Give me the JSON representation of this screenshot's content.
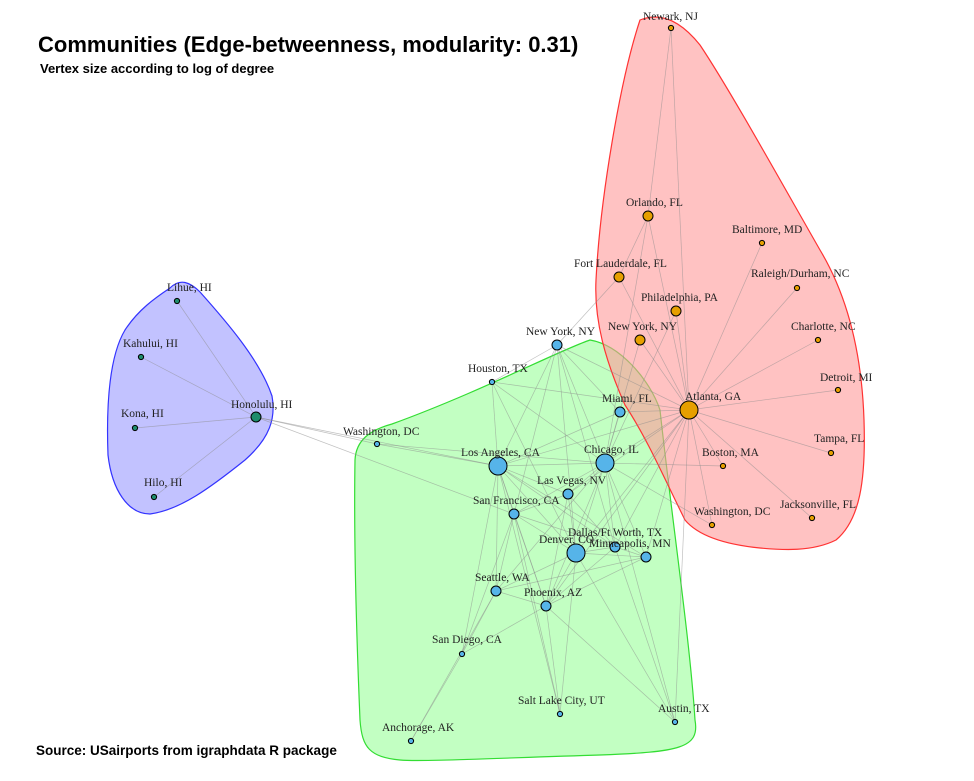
{
  "title": "Communities (Edge-betweenness, modularity: 0.31)",
  "subtitle": "Vertex size according to log of degree",
  "source": "Source: USairports from igraphdata R package",
  "colors": {
    "hawaii_fill": "#9999ff",
    "hawaii_stroke": "#3333ff",
    "hawaii_vertex": "#1e8c6b",
    "east_fill": "#ff9999",
    "east_stroke": "#ff3333",
    "east_vertex": "#e69f00",
    "main_fill": "#99ff99",
    "main_stroke": "#33dd33",
    "main_vertex": "#56b4e9",
    "isolated_vertex": "#56b4e9"
  },
  "communities": [
    {
      "id": "hawaii",
      "members": [
        "Lihue, HI",
        "Kahului, HI",
        "Kona, HI",
        "Hilo, HI",
        "Honolulu, HI"
      ]
    },
    {
      "id": "east",
      "members": [
        "Newark, NJ",
        "Orlando, FL",
        "Baltimore, MD",
        "Fort Lauderdale, FL",
        "Raleigh/Durham, NC",
        "Philadelphia, PA",
        "New York, NY (east)",
        "Charlotte, NC",
        "Atlanta, GA",
        "Detroit, MI",
        "Tampa, FL",
        "Boston, MA",
        "Washington, DC (east)",
        "Jacksonville, FL"
      ]
    },
    {
      "id": "main",
      "members": [
        "New York, NY",
        "Houston, TX",
        "Miami, FL",
        "Los Angeles, CA",
        "Chicago, IL",
        "Las Vegas, NV",
        "San Francisco, CA",
        "Dallas/Ft Worth, TX",
        "Denver, CO",
        "Minneapolis, MN",
        "Seattle, WA",
        "Phoenix, AZ",
        "San Diego, CA",
        "Salt Lake City, UT",
        "Austin, TX",
        "Anchorage, AK"
      ]
    }
  ],
  "vertices": [
    {
      "id": "lihue",
      "label": "Lihue, HI",
      "community": "hawaii",
      "degree": "low"
    },
    {
      "id": "kahului",
      "label": "Kahului, HI",
      "community": "hawaii",
      "degree": "low"
    },
    {
      "id": "kona",
      "label": "Kona, HI",
      "community": "hawaii",
      "degree": "low"
    },
    {
      "id": "hilo",
      "label": "Hilo, HI",
      "community": "hawaii",
      "degree": "low"
    },
    {
      "id": "honolulu",
      "label": "Honolulu, HI",
      "community": "hawaii",
      "degree": "mid"
    },
    {
      "id": "newark",
      "label": "Newark, NJ",
      "community": "east",
      "degree": "low"
    },
    {
      "id": "orlando",
      "label": "Orlando, FL",
      "community": "east",
      "degree": "mid"
    },
    {
      "id": "baltimore",
      "label": "Baltimore, MD",
      "community": "east",
      "degree": "low"
    },
    {
      "id": "fortlaud",
      "label": "Fort Lauderdale, FL",
      "community": "east",
      "degree": "mid"
    },
    {
      "id": "raleigh",
      "label": "Raleigh/Durham, NC",
      "community": "east",
      "degree": "low"
    },
    {
      "id": "philly",
      "label": "Philadelphia, PA",
      "community": "east",
      "degree": "mid"
    },
    {
      "id": "nyeast",
      "label": "New York, NY",
      "community": "east",
      "degree": "mid"
    },
    {
      "id": "charlotte",
      "label": "Charlotte, NC",
      "community": "east",
      "degree": "low"
    },
    {
      "id": "atlanta",
      "label": "Atlanta, GA",
      "community": "east",
      "degree": "high"
    },
    {
      "id": "detroit",
      "label": "Detroit, MI",
      "community": "east",
      "degree": "low"
    },
    {
      "id": "tampa",
      "label": "Tampa, FL",
      "community": "east",
      "degree": "low"
    },
    {
      "id": "boston",
      "label": "Boston, MA",
      "community": "east",
      "degree": "low"
    },
    {
      "id": "dceast",
      "label": "Washington, DC",
      "community": "east",
      "degree": "low"
    },
    {
      "id": "jax",
      "label": "Jacksonville, FL",
      "community": "east",
      "degree": "low"
    },
    {
      "id": "dcwest",
      "label": "Washington, DC",
      "community": "none",
      "degree": "low"
    },
    {
      "id": "nymain",
      "label": "New York, NY",
      "community": "main",
      "degree": "mid"
    },
    {
      "id": "houston",
      "label": "Houston, TX",
      "community": "main",
      "degree": "low"
    },
    {
      "id": "miami",
      "label": "Miami, FL",
      "community": "main",
      "degree": "mid"
    },
    {
      "id": "la",
      "label": "Los Angeles, CA",
      "community": "main",
      "degree": "high"
    },
    {
      "id": "chicago",
      "label": "Chicago, IL",
      "community": "main",
      "degree": "high"
    },
    {
      "id": "lasvegas",
      "label": "Las Vegas, NV",
      "community": "main",
      "degree": "mid"
    },
    {
      "id": "sf",
      "label": "San Francisco, CA",
      "community": "main",
      "degree": "mid"
    },
    {
      "id": "dallas",
      "label": "Dallas/Ft Worth, TX",
      "community": "main",
      "degree": "mid"
    },
    {
      "id": "denver",
      "label": "Denver, CO",
      "community": "main",
      "degree": "high"
    },
    {
      "id": "minneapolis",
      "label": "Minneapolis, MN",
      "community": "main",
      "degree": "mid"
    },
    {
      "id": "seattle",
      "label": "Seattle, WA",
      "community": "main",
      "degree": "mid"
    },
    {
      "id": "phoenix",
      "label": "Phoenix, AZ",
      "community": "main",
      "degree": "mid"
    },
    {
      "id": "sandiego",
      "label": "San Diego, CA",
      "community": "main",
      "degree": "low"
    },
    {
      "id": "slc",
      "label": "Salt Lake City, UT",
      "community": "main",
      "degree": "low"
    },
    {
      "id": "austin",
      "label": "Austin, TX",
      "community": "main",
      "degree": "low"
    },
    {
      "id": "anchorage",
      "label": "Anchorage, AK",
      "community": "main",
      "degree": "low"
    }
  ],
  "edges": [
    [
      "lihue",
      "honolulu"
    ],
    [
      "kahului",
      "honolulu"
    ],
    [
      "kona",
      "honolulu"
    ],
    [
      "hilo",
      "honolulu"
    ],
    [
      "honolulu",
      "dcwest"
    ],
    [
      "honolulu",
      "la"
    ],
    [
      "honolulu",
      "sf"
    ],
    [
      "dcwest",
      "la"
    ],
    [
      "dcwest",
      "chicago"
    ],
    [
      "newark",
      "atlanta"
    ],
    [
      "newark",
      "orlando"
    ],
    [
      "orlando",
      "atlanta"
    ],
    [
      "orlando",
      "fortlaud"
    ],
    [
      "baltimore",
      "atlanta"
    ],
    [
      "raleigh",
      "atlanta"
    ],
    [
      "charlotte",
      "atlanta"
    ],
    [
      "detroit",
      "atlanta"
    ],
    [
      "tampa",
      "atlanta"
    ],
    [
      "boston",
      "atlanta"
    ],
    [
      "dceast",
      "atlanta"
    ],
    [
      "jax",
      "atlanta"
    ],
    [
      "philly",
      "atlanta"
    ],
    [
      "nyeast",
      "atlanta"
    ],
    [
      "fortlaud",
      "atlanta"
    ],
    [
      "fortlaud",
      "nymain"
    ],
    [
      "nyeast",
      "chicago"
    ],
    [
      "philly",
      "chicago"
    ],
    [
      "orlando",
      "chicago"
    ],
    [
      "atlanta",
      "chicago"
    ],
    [
      "atlanta",
      "miami"
    ],
    [
      "atlanta",
      "dallas"
    ],
    [
      "atlanta",
      "denver"
    ],
    [
      "atlanta",
      "la"
    ],
    [
      "atlanta",
      "minneapolis"
    ],
    [
      "atlanta",
      "lasvegas"
    ],
    [
      "atlanta",
      "phoenix"
    ],
    [
      "atlanta",
      "houston"
    ],
    [
      "atlanta",
      "austin"
    ],
    [
      "atlanta",
      "nymain"
    ],
    [
      "dceast",
      "chicago"
    ],
    [
      "boston",
      "chicago"
    ],
    [
      "nymain",
      "houston"
    ],
    [
      "nymain",
      "la"
    ],
    [
      "nymain",
      "chicago"
    ],
    [
      "nymain",
      "miami"
    ],
    [
      "nymain",
      "sf"
    ],
    [
      "nymain",
      "dallas"
    ],
    [
      "nymain",
      "denver"
    ],
    [
      "houston",
      "la"
    ],
    [
      "houston",
      "chicago"
    ],
    [
      "houston",
      "denver"
    ],
    [
      "miami",
      "chicago"
    ],
    [
      "miami",
      "la"
    ],
    [
      "la",
      "chicago"
    ],
    [
      "la",
      "lasvegas"
    ],
    [
      "la",
      "sf"
    ],
    [
      "la",
      "dallas"
    ],
    [
      "la",
      "denver"
    ],
    [
      "la",
      "seattle"
    ],
    [
      "la",
      "phoenix"
    ],
    [
      "la",
      "sandiego"
    ],
    [
      "la",
      "slc"
    ],
    [
      "la",
      "minneapolis"
    ],
    [
      "chicago",
      "lasvegas"
    ],
    [
      "chicago",
      "sf"
    ],
    [
      "chicago",
      "dallas"
    ],
    [
      "chicago",
      "denver"
    ],
    [
      "chicago",
      "minneapolis"
    ],
    [
      "chicago",
      "seattle"
    ],
    [
      "chicago",
      "phoenix"
    ],
    [
      "chicago",
      "austin"
    ],
    [
      "lasvegas",
      "sf"
    ],
    [
      "lasvegas",
      "denver"
    ],
    [
      "lasvegas",
      "phoenix"
    ],
    [
      "lasvegas",
      "dallas"
    ],
    [
      "sf",
      "denver"
    ],
    [
      "sf",
      "seattle"
    ],
    [
      "sf",
      "phoenix"
    ],
    [
      "sf",
      "sandiego"
    ],
    [
      "sf",
      "dallas"
    ],
    [
      "sf",
      "slc"
    ],
    [
      "dallas",
      "denver"
    ],
    [
      "dallas",
      "phoenix"
    ],
    [
      "dallas",
      "austin"
    ],
    [
      "dallas",
      "minneapolis"
    ],
    [
      "denver",
      "minneapolis"
    ],
    [
      "denver",
      "seattle"
    ],
    [
      "denver",
      "phoenix"
    ],
    [
      "denver",
      "slc"
    ],
    [
      "denver",
      "austin"
    ],
    [
      "minneapolis",
      "seattle"
    ],
    [
      "minneapolis",
      "phoenix"
    ],
    [
      "seattle",
      "phoenix"
    ],
    [
      "seattle",
      "anchorage"
    ],
    [
      "seattle",
      "sandiego"
    ],
    [
      "phoenix",
      "sandiego"
    ],
    [
      "phoenix",
      "slc"
    ],
    [
      "phoenix",
      "austin"
    ],
    [
      "sandiego",
      "anchorage"
    ]
  ]
}
